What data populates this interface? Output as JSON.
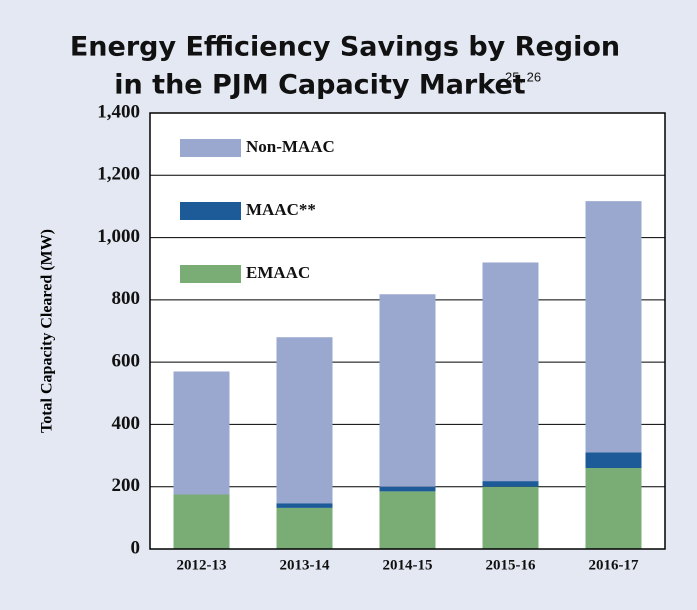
{
  "chart_data": {
    "type": "stacked_bar",
    "title": [
      "Energy Efficiency Savings by Region",
      "in the PJM Capacity Market"
    ],
    "title_superscript": "25, 26",
    "ylabel": "Total Capacity Cleared (MW)",
    "categories": [
      "2012-13",
      "2013-14",
      "2014-15",
      "2015-16",
      "2016-17"
    ],
    "series": [
      {
        "name": "EMAAC",
        "color": "#7aad76",
        "values": [
          175,
          132,
          185,
          200,
          260
        ]
      },
      {
        "name": "MAAC**",
        "color": "#1c5a98",
        "values": [
          0,
          15,
          15,
          18,
          50
        ]
      },
      {
        "name": "Non-MAAC",
        "color": "#9aa8d0",
        "values": [
          395,
          533,
          618,
          702,
          807
        ]
      }
    ],
    "ylim": [
      0,
      1400
    ],
    "yticks": [
      0,
      200,
      400,
      600,
      800,
      {
        "value": 1000,
        "label": "1,000"
      },
      {
        "value": 1200,
        "label": "1,200"
      },
      {
        "value": 1400,
        "label": "1,400"
      }
    ],
    "grid": true,
    "legend": "upper left"
  }
}
